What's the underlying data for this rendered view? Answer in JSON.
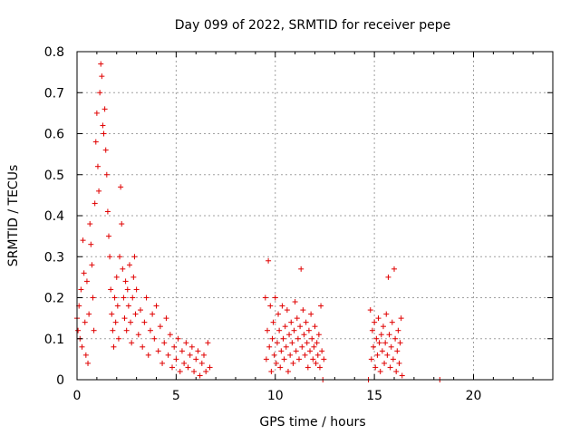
{
  "chart_data": {
    "type": "scatter",
    "title": "Day 099 of 2022, SRMTID for receiver pepe",
    "xlabel": "GPS time / hours",
    "ylabel": "SRMTID / TECUs",
    "xlim": [
      0,
      24
    ],
    "ylim": [
      0,
      0.8
    ],
    "x_ticks": [
      0,
      5,
      10,
      15,
      20
    ],
    "y_ticks": [
      0,
      0.1,
      0.2,
      0.3,
      0.4,
      0.5,
      0.6,
      0.7,
      0.8
    ],
    "x_tick_labels": [
      "0",
      "5",
      "10",
      "15",
      "20"
    ],
    "y_tick_labels": [
      "0",
      "0.1",
      "0.2",
      "0.3",
      "0.4",
      "0.5",
      "0.6",
      "0.7",
      "0.8"
    ],
    "grid": true,
    "marker": "+",
    "color": "#e00000",
    "series": [
      {
        "points": [
          [
            0.0,
            0.15
          ],
          [
            0.05,
            0.12
          ],
          [
            0.1,
            0.18
          ],
          [
            0.15,
            0.1
          ],
          [
            0.2,
            0.22
          ],
          [
            0.25,
            0.08
          ],
          [
            0.3,
            0.34
          ],
          [
            0.35,
            0.26
          ],
          [
            0.4,
            0.14
          ],
          [
            0.45,
            0.06
          ],
          [
            0.5,
            0.24
          ],
          [
            0.55,
            0.04
          ],
          [
            0.6,
            0.16
          ],
          [
            0.65,
            0.38
          ],
          [
            0.7,
            0.33
          ],
          [
            0.75,
            0.28
          ],
          [
            0.8,
            0.2
          ],
          [
            0.85,
            0.12
          ],
          [
            0.9,
            0.43
          ],
          [
            0.95,
            0.58
          ],
          [
            1.0,
            0.65
          ],
          [
            1.05,
            0.52
          ],
          [
            1.1,
            0.46
          ],
          [
            1.15,
            0.7
          ],
          [
            1.2,
            0.77
          ],
          [
            1.25,
            0.74
          ],
          [
            1.3,
            0.62
          ],
          [
            1.35,
            0.6
          ],
          [
            1.4,
            0.66
          ],
          [
            1.45,
            0.56
          ],
          [
            1.5,
            0.5
          ],
          [
            1.55,
            0.41
          ],
          [
            1.6,
            0.35
          ],
          [
            1.65,
            0.3
          ],
          [
            1.7,
            0.22
          ],
          [
            1.75,
            0.16
          ],
          [
            1.8,
            0.12
          ],
          [
            1.85,
            0.08
          ],
          [
            1.9,
            0.2
          ],
          [
            1.95,
            0.14
          ],
          [
            2.0,
            0.25
          ],
          [
            2.05,
            0.18
          ],
          [
            2.1,
            0.1
          ],
          [
            2.15,
            0.3
          ],
          [
            2.2,
            0.47
          ],
          [
            2.25,
            0.38
          ],
          [
            2.3,
            0.27
          ],
          [
            2.35,
            0.2
          ],
          [
            2.4,
            0.15
          ],
          [
            2.45,
            0.24
          ],
          [
            2.5,
            0.12
          ],
          [
            2.55,
            0.22
          ],
          [
            2.6,
            0.18
          ],
          [
            2.65,
            0.28
          ],
          [
            2.7,
            0.14
          ],
          [
            2.75,
            0.09
          ],
          [
            2.8,
            0.2
          ],
          [
            2.85,
            0.25
          ],
          [
            2.9,
            0.3
          ],
          [
            2.95,
            0.16
          ],
          [
            3.0,
            0.22
          ],
          [
            3.1,
            0.11
          ],
          [
            3.2,
            0.17
          ],
          [
            3.3,
            0.08
          ],
          [
            3.4,
            0.14
          ],
          [
            3.5,
            0.2
          ],
          [
            3.6,
            0.06
          ],
          [
            3.7,
            0.12
          ],
          [
            3.8,
            0.16
          ],
          [
            3.9,
            0.1
          ],
          [
            4.0,
            0.18
          ],
          [
            4.1,
            0.07
          ],
          [
            4.2,
            0.13
          ],
          [
            4.3,
            0.04
          ],
          [
            4.4,
            0.09
          ],
          [
            4.5,
            0.15
          ],
          [
            4.6,
            0.06
          ],
          [
            4.7,
            0.11
          ],
          [
            4.8,
            0.03
          ],
          [
            4.9,
            0.08
          ],
          [
            5.0,
            0.05
          ],
          [
            5.1,
            0.1
          ],
          [
            5.2,
            0.02
          ],
          [
            5.3,
            0.07
          ],
          [
            5.4,
            0.04
          ],
          [
            5.5,
            0.09
          ],
          [
            5.6,
            0.03
          ],
          [
            5.7,
            0.06
          ],
          [
            5.8,
            0.08
          ],
          [
            5.9,
            0.02
          ],
          [
            6.0,
            0.05
          ],
          [
            6.1,
            0.07
          ],
          [
            6.2,
            0.01
          ],
          [
            6.3,
            0.04
          ],
          [
            6.4,
            0.06
          ],
          [
            6.5,
            0.02
          ],
          [
            6.6,
            0.09
          ],
          [
            6.7,
            0.03
          ],
          [
            9.5,
            0.2
          ],
          [
            9.55,
            0.05
          ],
          [
            9.6,
            0.12
          ],
          [
            9.65,
            0.29
          ],
          [
            9.7,
            0.08
          ],
          [
            9.75,
            0.18
          ],
          [
            9.8,
            0.02
          ],
          [
            9.85,
            0.1
          ],
          [
            9.9,
            0.14
          ],
          [
            9.95,
            0.06
          ],
          [
            10.0,
            0.2
          ],
          [
            10.05,
            0.04
          ],
          [
            10.1,
            0.09
          ],
          [
            10.15,
            0.16
          ],
          [
            10.2,
            0.12
          ],
          [
            10.25,
            0.03
          ],
          [
            10.3,
            0.07
          ],
          [
            10.35,
            0.18
          ],
          [
            10.4,
            0.1
          ],
          [
            10.45,
            0.05
          ],
          [
            10.5,
            0.13
          ],
          [
            10.55,
            0.08
          ],
          [
            10.6,
            0.17
          ],
          [
            10.65,
            0.02
          ],
          [
            10.7,
            0.11
          ],
          [
            10.75,
            0.06
          ],
          [
            10.8,
            0.14
          ],
          [
            10.85,
            0.09
          ],
          [
            10.9,
            0.04
          ],
          [
            10.95,
            0.12
          ],
          [
            11.0,
            0.19
          ],
          [
            11.05,
            0.07
          ],
          [
            11.1,
            0.15
          ],
          [
            11.15,
            0.1
          ],
          [
            11.2,
            0.05
          ],
          [
            11.25,
            0.13
          ],
          [
            11.3,
            0.27
          ],
          [
            11.35,
            0.08
          ],
          [
            11.4,
            0.17
          ],
          [
            11.45,
            0.11
          ],
          [
            11.5,
            0.06
          ],
          [
            11.55,
            0.14
          ],
          [
            11.6,
            0.09
          ],
          [
            11.65,
            0.03
          ],
          [
            11.7,
            0.12
          ],
          [
            11.75,
            0.07
          ],
          [
            11.8,
            0.16
          ],
          [
            11.85,
            0.1
          ],
          [
            11.9,
            0.05
          ],
          [
            11.95,
            0.08
          ],
          [
            12.0,
            0.13
          ],
          [
            12.05,
            0.04
          ],
          [
            12.1,
            0.09
          ],
          [
            12.15,
            0.06
          ],
          [
            12.2,
            0.11
          ],
          [
            12.25,
            0.03
          ],
          [
            12.3,
            0.18
          ],
          [
            12.35,
            0.07
          ],
          [
            12.4,
            0.0
          ],
          [
            12.45,
            0.05
          ],
          [
            14.7,
            0.0
          ],
          [
            14.8,
            0.17
          ],
          [
            14.85,
            0.05
          ],
          [
            14.9,
            0.12
          ],
          [
            14.95,
            0.08
          ],
          [
            15.0,
            0.14
          ],
          [
            15.05,
            0.03
          ],
          [
            15.1,
            0.1
          ],
          [
            15.15,
            0.06
          ],
          [
            15.2,
            0.15
          ],
          [
            15.25,
            0.09
          ],
          [
            15.3,
            0.02
          ],
          [
            15.35,
            0.11
          ],
          [
            15.4,
            0.07
          ],
          [
            15.45,
            0.13
          ],
          [
            15.5,
            0.04
          ],
          [
            15.55,
            0.09
          ],
          [
            15.6,
            0.16
          ],
          [
            15.65,
            0.06
          ],
          [
            15.7,
            0.25
          ],
          [
            15.75,
            0.11
          ],
          [
            15.8,
            0.03
          ],
          [
            15.85,
            0.08
          ],
          [
            15.9,
            0.14
          ],
          [
            15.95,
            0.05
          ],
          [
            16.0,
            0.27
          ],
          [
            16.05,
            0.1
          ],
          [
            16.1,
            0.02
          ],
          [
            16.15,
            0.07
          ],
          [
            16.2,
            0.12
          ],
          [
            16.25,
            0.04
          ],
          [
            16.3,
            0.09
          ],
          [
            16.35,
            0.15
          ],
          [
            16.4,
            0.01
          ],
          [
            18.3,
            0.0
          ]
        ]
      }
    ]
  }
}
